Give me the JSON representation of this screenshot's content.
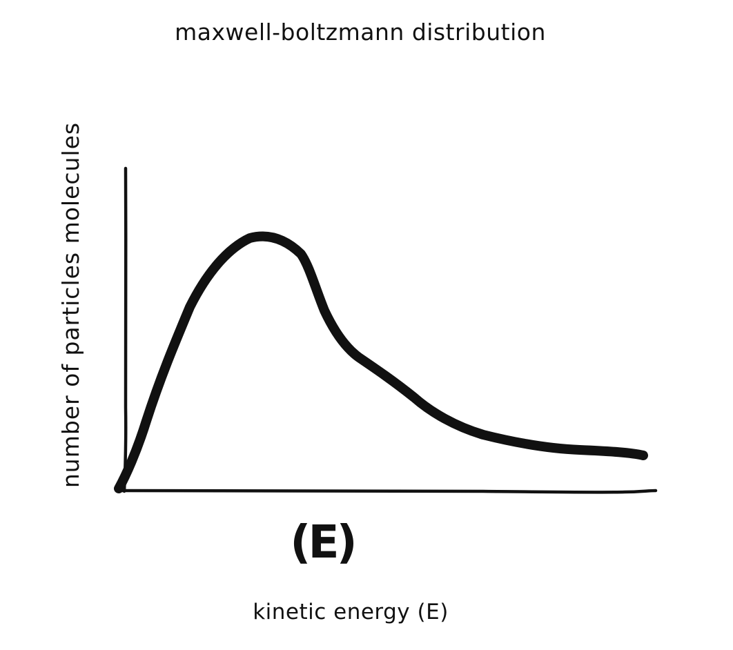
{
  "diagram": {
    "title": "maxwell-boltzmann distribution",
    "y_axis_label": "number of particles molecules",
    "x_axis_label": "kinetic energy (E)",
    "peak_label": "(E)",
    "curve_description": "right-skewed distribution curve rising steeply from origin to a peak, then decaying with a long tail"
  }
}
